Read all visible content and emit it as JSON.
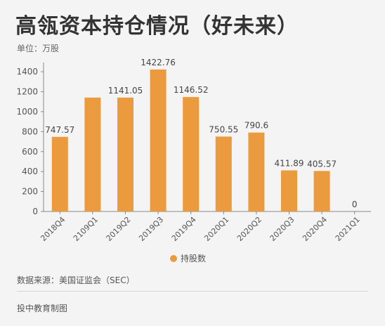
{
  "title": "高瓴资本持仓情况（好未来）",
  "unit_label": "单位：万股",
  "source": "数据来源：美国证监会（SEC）",
  "credit": "投中教育制图",
  "colors": {
    "bar": "#eb9a3d",
    "axis": "#888888",
    "text": "#555555"
  },
  "chart_data": {
    "type": "bar",
    "title": "高瓴资本持仓情况（好未来）",
    "xlabel": "",
    "ylabel": "",
    "unit": "万股",
    "categories": [
      "2018Q4",
      "2109Q1",
      "2019Q2",
      "2019Q3",
      "2019Q4",
      "2020Q1",
      "2020Q2",
      "2020Q3",
      "2020Q4",
      "2021Q1"
    ],
    "series": [
      {
        "name": "持股数",
        "values": [
          747.57,
          1141.05,
          1141.05,
          1422.76,
          1146.52,
          750.55,
          790.6,
          411.89,
          405.57,
          0
        ]
      }
    ],
    "data_labels": [
      "747.57",
      "",
      "1141.05",
      "1422.76",
      "1146.52",
      "750.55",
      "790.6",
      "411.89",
      "405.57",
      "0"
    ],
    "y_ticks": [
      0,
      200,
      400,
      600,
      800,
      1000,
      1200,
      1400
    ],
    "ylim": [
      0,
      1450
    ],
    "grid": false,
    "legend": "bottom-center"
  }
}
